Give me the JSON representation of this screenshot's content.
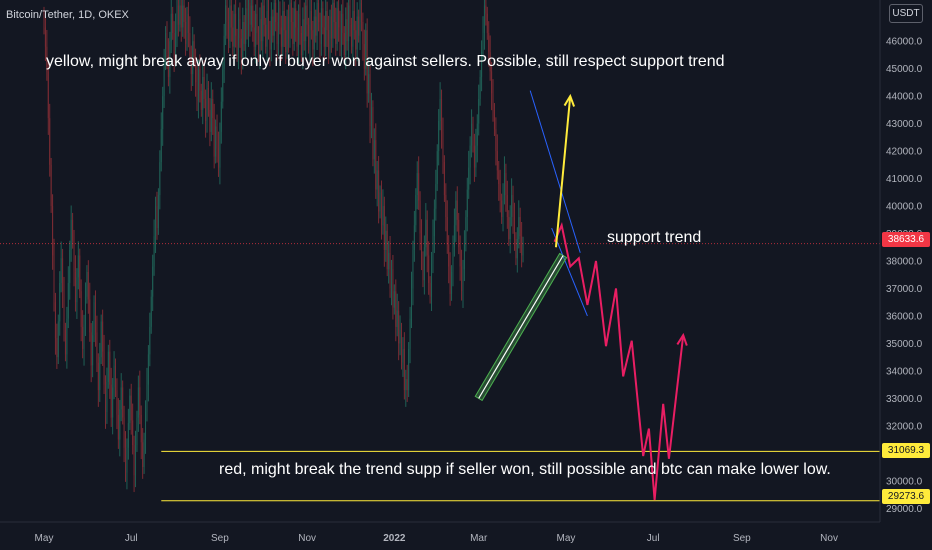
{
  "header": {
    "symbol_title": "Bitcoin/Tether, 1D, OKEX",
    "currency": "USDT"
  },
  "annotations": {
    "top_note": "yellow, might break away if only if buyer won against sellers. Possible, still respect support trend",
    "support_label": "support trend",
    "bottom_note": "red, might break the trend supp if seller won, still possible and btc can make lower low."
  },
  "price_badges": {
    "current": "38633.6",
    "level_upper": "31069.3",
    "level_lower": "29273.6"
  },
  "colors": {
    "background": "#131722",
    "up_candle": "#1f5f55",
    "down_candle": "#7a2b33",
    "yellow": "#ffeb3b",
    "red_path": "#e91e63",
    "channel": "#4caf50",
    "wedge": "#2962ff",
    "current_price_line": "#f23645"
  },
  "chart_data": {
    "type": "candlestick",
    "title": "Bitcoin/Tether, 1D, OKEX",
    "y_axis": {
      "side": "right",
      "min": 28500,
      "max": 47500,
      "ticks": [
        29000,
        30000,
        31000,
        32000,
        33000,
        34000,
        35000,
        36000,
        37000,
        38000,
        39000,
        40000,
        41000,
        42000,
        43000,
        44000,
        45000,
        46000
      ],
      "tick_labels": [
        "29000.0",
        "30000.0",
        "31000.0",
        "32000.0",
        "33000.0",
        "34000.0",
        "35000.0",
        "36000.0",
        "37000.0",
        "38000.0",
        "39000.0",
        "40000.0",
        "41000.0",
        "42000.0",
        "43000.0",
        "44000.0",
        "45000.0",
        "46000.0"
      ]
    },
    "x_axis": {
      "labels": [
        "May",
        "Jul",
        "Sep",
        "Nov",
        "2022",
        "Mar",
        "May",
        "Jul",
        "Sep",
        "Nov"
      ],
      "label_index": [
        0,
        61,
        123,
        184,
        245,
        304,
        365,
        426,
        488,
        549
      ]
    },
    "candles_close": [
      46500,
      45800,
      44900,
      43200,
      41500,
      40000,
      38200,
      36500,
      35200,
      34500,
      35800,
      37200,
      38100,
      36900,
      35500,
      34600,
      35900,
      37200,
      38400,
      39500,
      38700,
      37600,
      36500,
      37400,
      38200,
      36900,
      35600,
      34800,
      35700,
      36700,
      37600,
      36600,
      35400,
      34200,
      35300,
      36500,
      35400,
      34300,
      33300,
      34500,
      35800,
      34700,
      33500,
      32500,
      33600,
      34700,
      33500,
      32300,
      33400,
      34200,
      33300,
      32400,
      31500,
      32600,
      33400,
      32300,
      31200,
      30300,
      31200,
      32100,
      33100,
      32200,
      31300,
      30200,
      31300,
      32300,
      33400,
      32400,
      31400,
      30500,
      31500,
      32500,
      33500,
      34600,
      35600,
      36700,
      37800,
      38900,
      40000,
      39200,
      40400,
      41600,
      42800,
      44000,
      45200,
      46300,
      45500,
      44700,
      46000,
      47000,
      46300,
      45400,
      46400,
      47300,
      46600,
      47300,
      46500,
      47300,
      46700,
      45900,
      47000,
      46300,
      45500,
      44800,
      46000,
      45300,
      44500,
      43800,
      45000,
      44200,
      43500,
      44700,
      43900,
      43100,
      44300,
      43500,
      42700,
      43900,
      43200,
      41800,
      42900,
      42100,
      41400,
      42700,
      43800,
      45000,
      46200,
      47300,
      46700,
      46000,
      47300,
      46500,
      45800,
      47000,
      46200,
      45500,
      46800,
      46100,
      45400,
      46700,
      45900,
      47200,
      46400,
      47400,
      46600,
      47300,
      46500,
      45800,
      47000,
      46300,
      45500,
      46800,
      46000,
      47300,
      46600,
      45800,
      47100,
      46400,
      45700,
      46900,
      46200,
      47400,
      46700,
      45900,
      47200,
      46500,
      45800,
      47100,
      46400,
      45600,
      46900,
      46100,
      47400,
      46700,
      45900,
      47200,
      46500,
      45800,
      47000,
      46300,
      45500,
      46800,
      46000,
      47300,
      46600,
      45800,
      47100,
      46400,
      45700,
      46900,
      46200,
      47400,
      46700,
      45900,
      47200,
      46500,
      45800,
      47100,
      46400,
      45600,
      46900,
      46100,
      47400,
      46700,
      45900,
      47200,
      46500,
      45800,
      47000,
      46300,
      45500,
      46800,
      46000,
      47300,
      46600,
      45800,
      47100,
      46400,
      45700,
      46900,
      46200,
      47400,
      46700,
      45900,
      45000,
      46400,
      44100,
      44800,
      42900,
      43600,
      41700,
      42400,
      40600,
      41300,
      39800,
      40500,
      39300,
      40000,
      38400,
      39100,
      37700,
      38300,
      37000,
      37700,
      36300,
      36900,
      35600,
      36200,
      35000,
      35500,
      34300,
      34800,
      33300,
      33700,
      33300,
      34800,
      35900,
      37000,
      38400,
      39300,
      40400,
      41200,
      40200,
      39000,
      38100,
      37300,
      38500,
      39500,
      38200,
      37200,
      36700,
      37900,
      38900,
      39900,
      40800,
      42000,
      43100,
      43900,
      42700,
      41600,
      40400,
      39600,
      38600,
      37800,
      36800,
      37600,
      38500,
      39300,
      40200,
      39500,
      38500,
      37800,
      36900,
      37700,
      38600,
      39600,
      40600,
      41400,
      42200,
      43000,
      42200,
      41400,
      42200,
      43000,
      43900,
      44700,
      45600,
      46300,
      47300,
      47000,
      46300,
      45600,
      44900,
      44100,
      43500,
      42800,
      42000,
      41300,
      40800,
      40200,
      39600,
      40400,
      41200,
      40400,
      39600,
      38800,
      39600,
      40400,
      39600,
      38800,
      38100,
      38800,
      39600,
      38900,
      38200,
      38633
    ],
    "horizontal_levels": [
      {
        "price": 31069.3
      },
      {
        "price": 29273.6
      }
    ],
    "current_price": 38633.6,
    "scenarios": {
      "yellow": [
        [
          358,
          38500
        ],
        [
          368,
          44000
        ]
      ],
      "red": [
        [
          357,
          38700
        ],
        [
          362,
          39300
        ],
        [
          368,
          37800
        ],
        [
          374,
          38100
        ],
        [
          380,
          36400
        ],
        [
          386,
          38000
        ],
        [
          393,
          34900
        ],
        [
          400,
          37000
        ],
        [
          405,
          33800
        ],
        [
          411,
          35100
        ],
        [
          419,
          30900
        ],
        [
          423,
          31900
        ],
        [
          427,
          29300
        ],
        [
          433,
          32800
        ],
        [
          437,
          30800
        ],
        [
          447,
          35300
        ]
      ]
    },
    "support_channel": [
      [
        304,
        33000
      ],
      [
        363,
        38200
      ]
    ],
    "wedge_lines": [
      [
        [
          340,
          44200
        ],
        [
          375,
          38300
        ]
      ],
      [
        [
          355,
          39200
        ],
        [
          380,
          36000
        ]
      ]
    ]
  }
}
